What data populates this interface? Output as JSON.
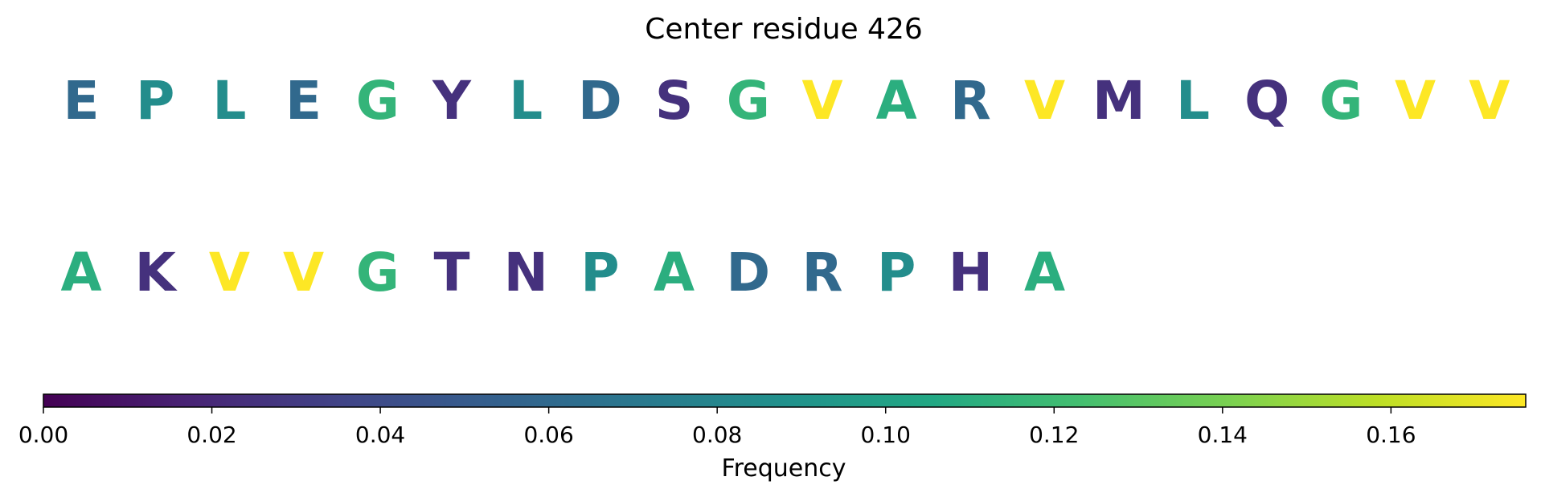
{
  "chart_data": {
    "type": "heatmap",
    "title": "Center residue 426",
    "sequence": [
      "E",
      "P",
      "L",
      "E",
      "G",
      "Y",
      "L",
      "D",
      "S",
      "G",
      "V",
      "A",
      "R",
      "V",
      "M",
      "L",
      "Q",
      "G",
      "V",
      "V",
      "A",
      "K",
      "V",
      "V",
      "G",
      "T",
      "N",
      "P",
      "A",
      "D",
      "R",
      "P",
      "H",
      "A"
    ],
    "frequency": [
      0.06,
      0.085,
      0.085,
      0.06,
      0.115,
      0.025,
      0.085,
      0.06,
      0.025,
      0.115,
      0.176,
      0.11,
      0.06,
      0.176,
      0.025,
      0.085,
      0.025,
      0.115,
      0.176,
      0.176,
      0.11,
      0.025,
      0.176,
      0.176,
      0.115,
      0.025,
      0.025,
      0.085,
      0.11,
      0.06,
      0.06,
      0.085,
      0.025,
      0.11
    ],
    "letters_per_row": 20,
    "colorbar": {
      "colormap": "viridis",
      "vmin": 0.0,
      "vmax": 0.176,
      "ticks": [
        0.0,
        0.02,
        0.04,
        0.06,
        0.08,
        0.1,
        0.12,
        0.14,
        0.16
      ],
      "tick_labels": [
        "0.00",
        "0.02",
        "0.04",
        "0.06",
        "0.08",
        "0.10",
        "0.12",
        "0.14",
        "0.16"
      ],
      "label": "Frequency",
      "orientation": "horizontal"
    }
  }
}
